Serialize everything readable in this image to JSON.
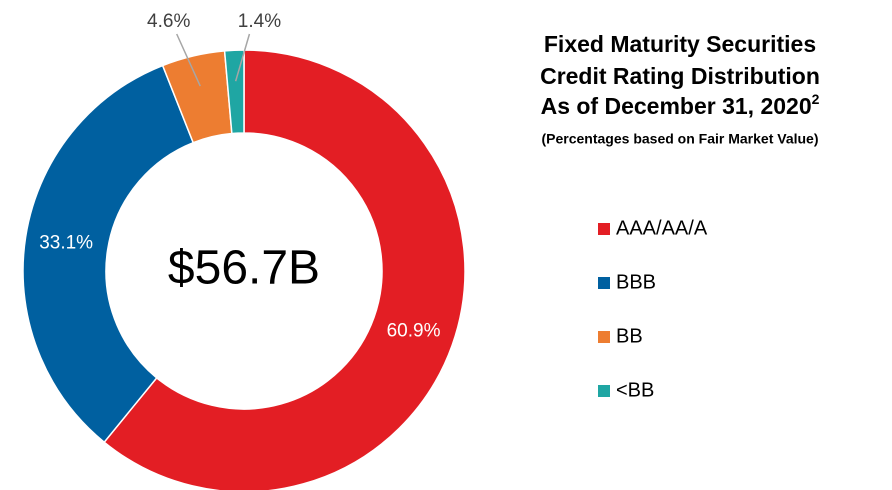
{
  "chart_data": {
    "type": "donut",
    "title": [
      "Fixed Maturity Securities",
      "Credit Rating Distribution",
      "As of December 31, 2020"
    ],
    "title_superscript": "2",
    "subtitle": "(Percentages based on Fair Market Value)",
    "center_label": "$56.7B",
    "categories": [
      "AAA/AA/A",
      "BBB",
      "BB",
      "<BB"
    ],
    "values": [
      60.9,
      33.1,
      4.6,
      1.4
    ],
    "value_labels": [
      "60.9%",
      "33.1%",
      "4.6%",
      "1.4%"
    ],
    "colors": [
      "#e31e24",
      "#0060a0",
      "#ed7d31",
      "#1fa6a3"
    ],
    "legend": "right"
  }
}
